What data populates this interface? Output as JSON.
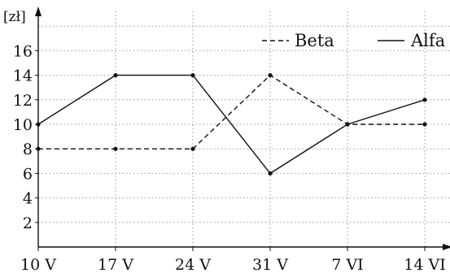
{
  "chart_data": {
    "type": "line",
    "categories": [
      "10 V",
      "17 V",
      "24 V",
      "31 V",
      "7 VI",
      "14 VI"
    ],
    "ylabel": "[zł]",
    "ylim": [
      0,
      18
    ],
    "yticks": [
      2,
      4,
      6,
      8,
      10,
      12,
      14,
      16
    ],
    "grid": true,
    "legend": "top-right",
    "series": [
      {
        "name": "Beta",
        "style": "dashed",
        "values": [
          8,
          8,
          8,
          14,
          10,
          10
        ]
      },
      {
        "name": "Alfa",
        "style": "solid",
        "values": [
          10,
          14,
          14,
          6,
          10,
          12
        ]
      }
    ],
    "colors": {
      "line": "#111111",
      "grid": "#9a9a9a"
    }
  }
}
